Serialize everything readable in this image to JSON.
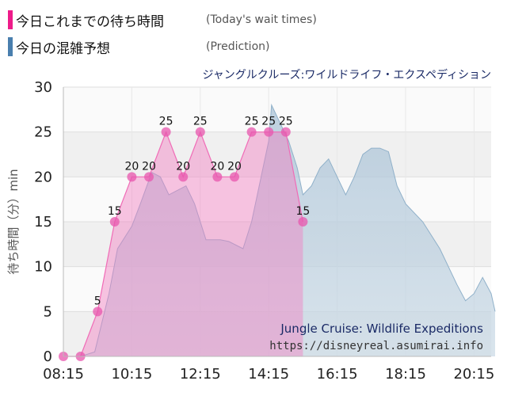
{
  "legend": {
    "today_jp": "今日これまでの待ち時間",
    "today_en": "(Today's wait times)",
    "today_color": "#ee1c8a",
    "pred_jp": "今日の混雑予想",
    "pred_en": "(Prediction)",
    "pred_color": "#4a7fae"
  },
  "chart_data": {
    "type": "area",
    "subtitle": "ジャングルクルーズ:ワイルドライフ・エクスペディション",
    "ylabel": "待ち時間（分）min",
    "xlabel": "",
    "ylim": [
      0,
      30
    ],
    "yticks": [
      0,
      5,
      10,
      15,
      20,
      25,
      30
    ],
    "xlim": [
      "08:15",
      "20:45"
    ],
    "xticks": [
      "08:15",
      "10:15",
      "12:15",
      "14:15",
      "16:15",
      "18:15",
      "20:15"
    ],
    "grid": true,
    "watermark_title": "Jungle Cruise: Wildlife Expeditions",
    "watermark_url": "https://disneyreal.asumirai.info",
    "series": [
      {
        "name": "今日これまでの待ち時間",
        "color": "#ee1c8a",
        "show_labels": true,
        "points": [
          [
            "08:15",
            0
          ],
          [
            "08:45",
            0
          ],
          [
            "09:15",
            5
          ],
          [
            "09:45",
            15
          ],
          [
            "10:15",
            20
          ],
          [
            "10:45",
            20
          ],
          [
            "11:15",
            25
          ],
          [
            "11:45",
            20
          ],
          [
            "12:15",
            25
          ],
          [
            "12:45",
            20
          ],
          [
            "13:15",
            20
          ],
          [
            "13:45",
            25
          ],
          [
            "14:15",
            25
          ],
          [
            "14:45",
            25
          ],
          [
            "15:15",
            15
          ]
        ]
      },
      {
        "name": "今日の混雑予想",
        "color": "#4a7fae",
        "show_labels": false,
        "points": [
          [
            "08:15",
            0
          ],
          [
            "08:45",
            0
          ],
          [
            "09:10",
            0.5
          ],
          [
            "09:35",
            7
          ],
          [
            "09:50",
            12
          ],
          [
            "10:15",
            14.5
          ],
          [
            "10:30",
            17
          ],
          [
            "10:50",
            20.5
          ],
          [
            "11:05",
            20
          ],
          [
            "11:20",
            18
          ],
          [
            "11:50",
            19
          ],
          [
            "12:05",
            17
          ],
          [
            "12:25",
            13
          ],
          [
            "12:50",
            13
          ],
          [
            "13:05",
            12.8
          ],
          [
            "13:30",
            12
          ],
          [
            "13:45",
            15
          ],
          [
            "14:15",
            24
          ],
          [
            "14:20",
            28
          ],
          [
            "14:35",
            26
          ],
          [
            "14:50",
            24
          ],
          [
            "15:05",
            21
          ],
          [
            "15:15",
            18
          ],
          [
            "15:30",
            19
          ],
          [
            "15:45",
            21
          ],
          [
            "16:00",
            22
          ],
          [
            "16:15",
            20
          ],
          [
            "16:30",
            18
          ],
          [
            "16:45",
            20
          ],
          [
            "17:00",
            22.5
          ],
          [
            "17:15",
            23.2
          ],
          [
            "17:30",
            23.2
          ],
          [
            "17:45",
            22.8
          ],
          [
            "18:00",
            19
          ],
          [
            "18:15",
            17
          ],
          [
            "18:45",
            15
          ],
          [
            "19:15",
            12
          ],
          [
            "19:45",
            8
          ],
          [
            "20:00",
            6.2
          ],
          [
            "20:15",
            7
          ],
          [
            "20:30",
            8.8
          ],
          [
            "20:45",
            7
          ],
          [
            "20:52",
            5
          ]
        ]
      }
    ]
  }
}
